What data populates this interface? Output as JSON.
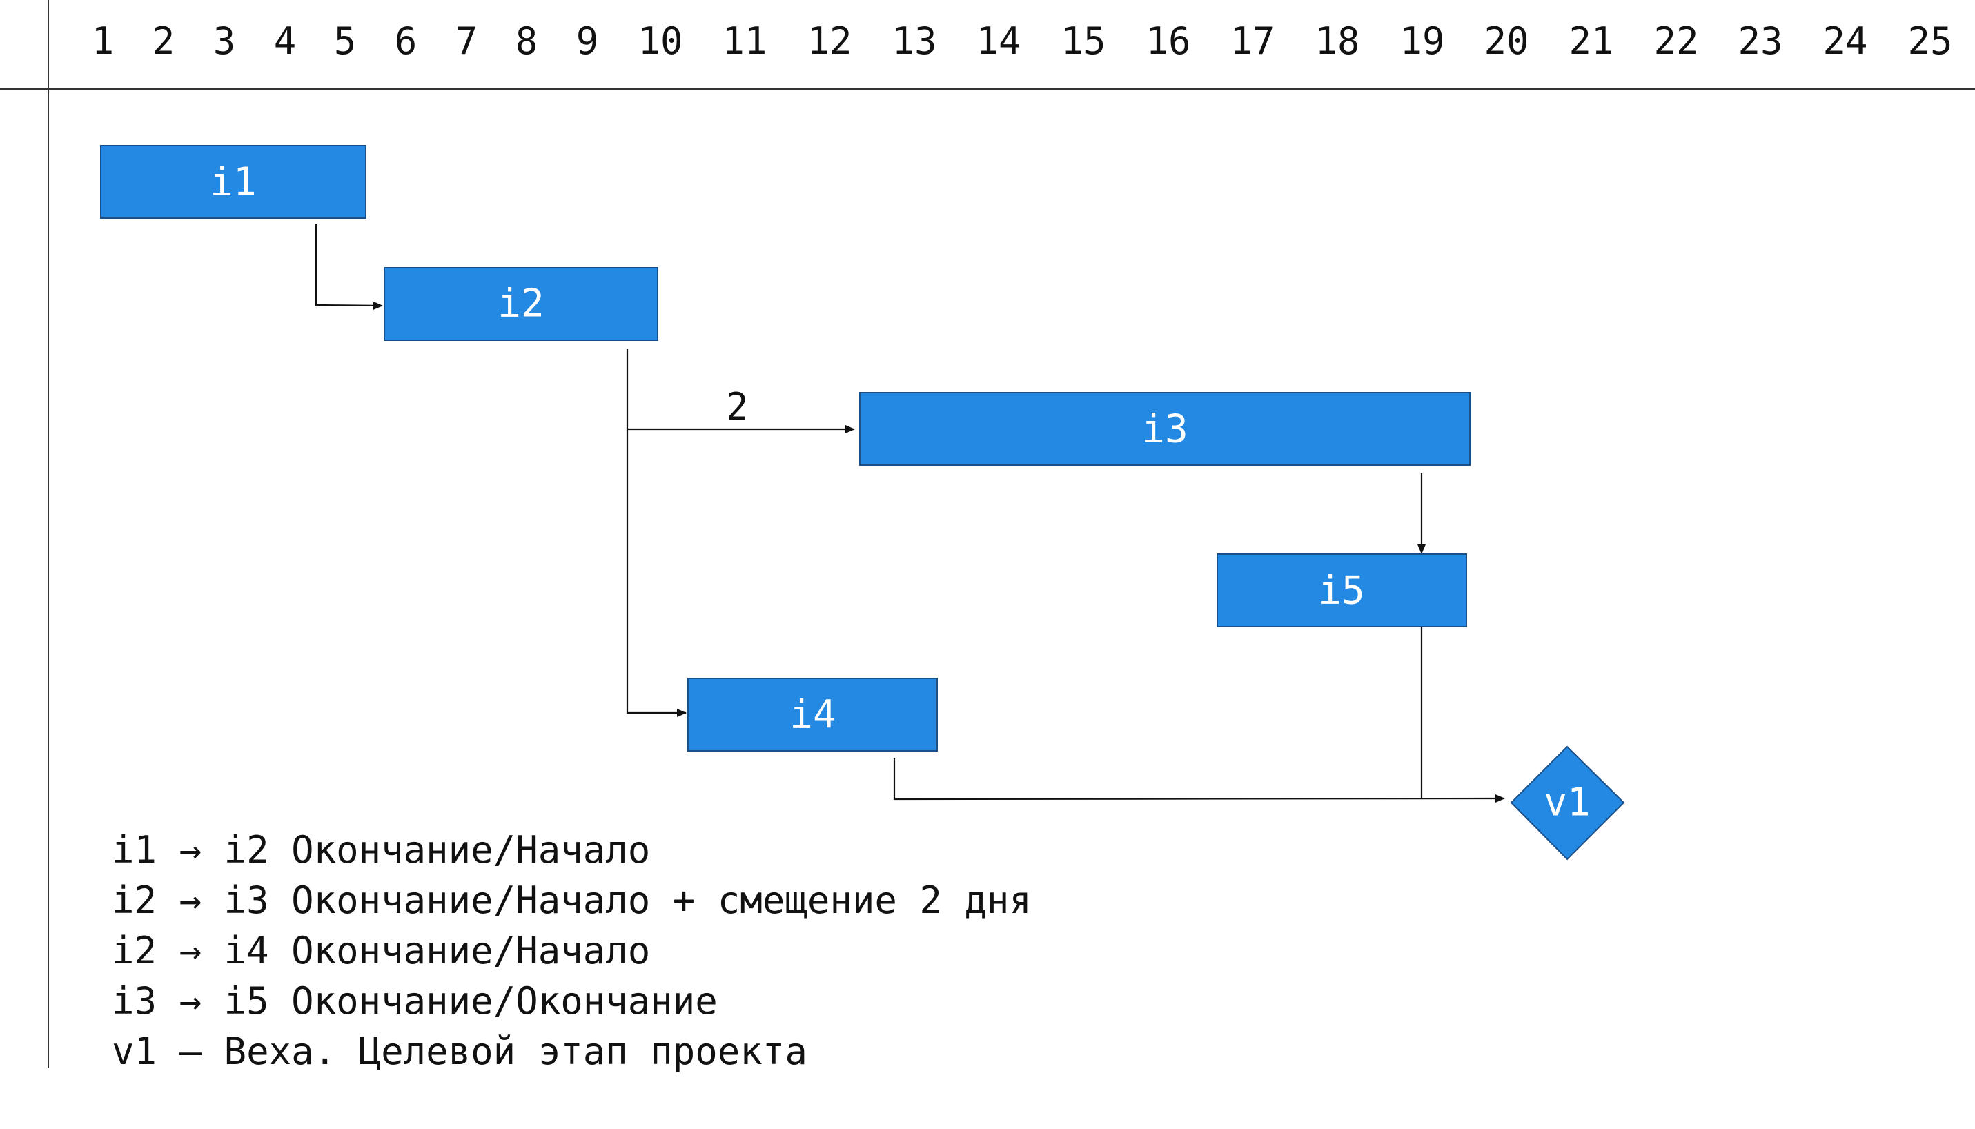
{
  "timeline": {
    "days": [
      "1",
      "2",
      "3",
      "4",
      "5",
      "6",
      "7",
      "8",
      "9",
      "10",
      "11",
      "12",
      "13",
      "14",
      "15",
      "16",
      "17",
      "18",
      "19",
      "20",
      "21",
      "22",
      "23",
      "24",
      "25"
    ]
  },
  "colors": {
    "task_fill": "#2389e3",
    "task_border": "#1a4f8a",
    "milestone_fill": "#2389e3",
    "text_on_task": "#ffffff",
    "lines": "#111111"
  },
  "tasks": [
    {
      "id": "i1",
      "label": "i1"
    },
    {
      "id": "i2",
      "label": "i2"
    },
    {
      "id": "i3",
      "label": "i3"
    },
    {
      "id": "i4",
      "label": "i4"
    },
    {
      "id": "i5",
      "label": "i5"
    }
  ],
  "milestone": {
    "id": "v1",
    "label": "v1"
  },
  "links": [
    {
      "from": "i1",
      "to": "i2",
      "type": "finish-to-start",
      "lag_label": ""
    },
    {
      "from": "i2",
      "to": "i3",
      "type": "finish-to-start",
      "lag_label": "2"
    },
    {
      "from": "i2",
      "to": "i4",
      "type": "finish-to-start",
      "lag_label": ""
    },
    {
      "from": "i3",
      "to": "i5",
      "type": "finish-to-finish",
      "lag_label": ""
    },
    {
      "from": "i5",
      "to": "v1",
      "type": "finish-to-start",
      "lag_label": ""
    },
    {
      "from": "i4",
      "to": "v1",
      "type": "finish-to-start",
      "lag_label": ""
    }
  ],
  "legend": {
    "lines": [
      "i1 → i2 Окончание/Начало",
      "i2 → i3 Окончание/Начало + смещение 2 дня",
      "i2 → i4 Окончание/Начало",
      "i3 → i5 Окончание/Окончание",
      "v1 – Веха. Целевой этап проекта"
    ]
  }
}
